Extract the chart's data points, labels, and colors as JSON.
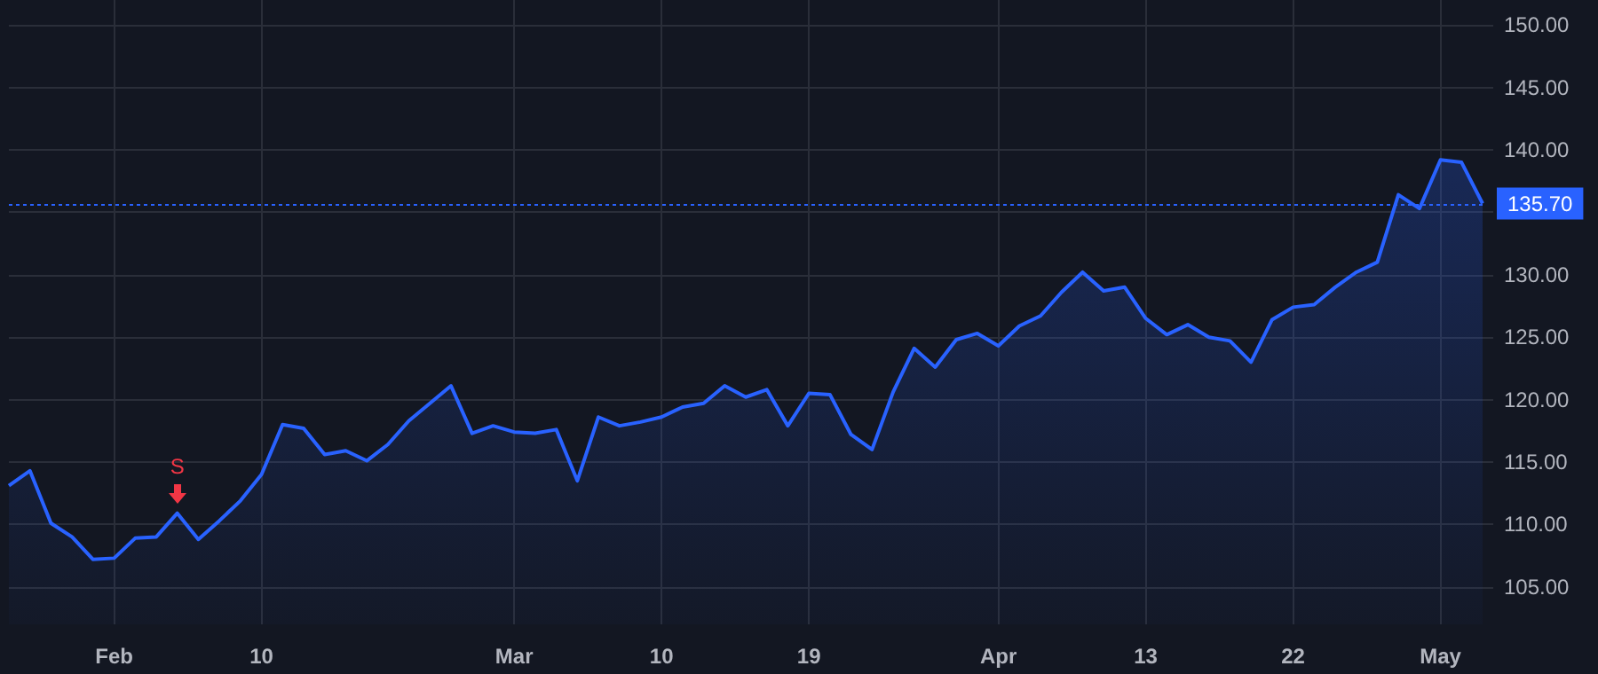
{
  "chart_data": {
    "type": "area",
    "categories": [
      null,
      null,
      null,
      null,
      null,
      "Feb",
      null,
      null,
      null,
      null,
      null,
      null,
      "10",
      null,
      null,
      null,
      null,
      null,
      null,
      null,
      null,
      null,
      null,
      null,
      "Mar",
      null,
      null,
      null,
      null,
      null,
      null,
      "10",
      null,
      null,
      null,
      null,
      null,
      null,
      "19",
      null,
      null,
      null,
      null,
      null,
      null,
      null,
      null,
      "Apr",
      null,
      null,
      null,
      null,
      null,
      null,
      "13",
      null,
      null,
      null,
      null,
      null,
      null,
      "22",
      null,
      null,
      null,
      null,
      null,
      null,
      "May",
      null,
      null
    ],
    "series": [
      {
        "color": "#2962ff",
        "values": [
          113.1,
          114.3,
          110.1,
          109.0,
          107.2,
          107.3,
          108.9,
          109.0,
          110.9,
          108.8,
          110.3,
          111.9,
          114.0,
          118.0,
          117.7,
          115.6,
          115.9,
          115.1,
          116.4,
          118.3,
          119.7,
          121.1,
          117.3,
          117.9,
          117.4,
          117.3,
          117.6,
          113.5,
          118.6,
          117.9,
          118.2,
          118.6,
          119.4,
          119.7,
          121.1,
          120.2,
          120.8,
          117.9,
          120.5,
          120.4,
          117.2,
          116.0,
          120.6,
          124.1,
          122.6,
          124.8,
          125.3,
          124.3,
          125.9,
          126.7,
          128.6,
          130.2,
          128.7,
          129.0,
          126.5,
          125.2,
          126.0,
          125.0,
          124.7,
          123.0,
          126.4,
          127.4,
          127.6,
          129.0,
          130.2,
          131.0,
          136.4,
          135.3,
          139.2,
          139.0,
          135.7
        ]
      }
    ],
    "ylim": [
      102,
      152
    ],
    "yticks": [
      {
        "value": 105,
        "label": "105.00"
      },
      {
        "value": 110,
        "label": "110.00"
      },
      {
        "value": 115,
        "label": "115.00"
      },
      {
        "value": 120,
        "label": "120.00"
      },
      {
        "value": 125,
        "label": "125.00"
      },
      {
        "value": 130,
        "label": "130.00"
      },
      {
        "value": 135,
        "label": null
      },
      {
        "value": 140,
        "label": "140.00"
      },
      {
        "value": 145,
        "label": "145.00"
      },
      {
        "value": 150,
        "label": "150.00"
      }
    ],
    "ref_lines": [
      {
        "axis": "y",
        "value": 135.7,
        "label": "135.70",
        "color": "#2962ff",
        "line_style": "dotted"
      }
    ],
    "annotations": [
      {
        "text": "S",
        "y": 110.9
      }
    ],
    "grid": true,
    "marker": "none",
    "line_style": "solid"
  }
}
